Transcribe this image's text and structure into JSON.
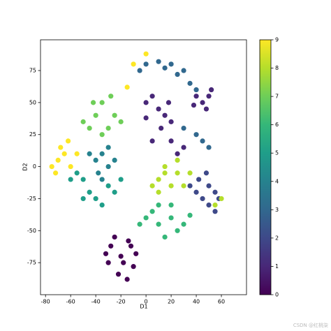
{
  "chart_data": {
    "type": "scatter",
    "xlabel": "D1",
    "ylabel": "D2",
    "xlim": [
      -84,
      80
    ],
    "ylim": [
      -100,
      99
    ],
    "xticks": [
      -80,
      -60,
      -40,
      -20,
      0,
      20,
      40,
      60
    ],
    "yticks": [
      -75,
      -50,
      -25,
      0,
      25,
      50,
      75
    ],
    "clim": [
      0,
      9
    ],
    "cticks": [
      0,
      1,
      2,
      3,
      4,
      5,
      6,
      7,
      8,
      9
    ],
    "colormap": [
      "#440154",
      "#482878",
      "#3e4989",
      "#31688e",
      "#26828e",
      "#1f9e89",
      "#35b779",
      "#6ece58",
      "#b5de2b",
      "#fde725"
    ],
    "x": [
      -20,
      -28,
      -12,
      -30,
      -10,
      -22,
      -15,
      -25,
      -8,
      -32,
      -18,
      -14,
      0,
      5,
      10,
      15,
      20,
      12,
      5,
      20,
      25,
      30,
      0,
      18,
      40,
      45,
      50,
      48,
      52,
      38,
      40,
      45,
      50,
      55,
      50,
      42,
      58,
      35,
      48,
      55,
      -5,
      0,
      10,
      20,
      30,
      35,
      25,
      15,
      40,
      40,
      45,
      50,
      30,
      -40,
      -35,
      -30,
      -38,
      -45,
      -30,
      -35,
      -25,
      -50,
      -45,
      -40,
      -55,
      -35,
      -25,
      -60,
      -30,
      -20,
      -50,
      0,
      10,
      20,
      5,
      15,
      25,
      -5,
      30,
      10,
      20,
      35,
      -40,
      -35,
      -30,
      -45,
      -25,
      -35,
      -42,
      -28,
      -50,
      -20,
      10,
      15,
      20,
      5,
      25,
      30,
      15,
      25,
      10,
      35,
      55,
      60,
      -70,
      -65,
      -75,
      -60,
      -68,
      -72,
      -62,
      -55,
      0,
      -15,
      -10
    ],
    "y": [
      -70,
      -62,
      -62,
      -75,
      -78,
      -84,
      -88,
      -55,
      -68,
      -68,
      -75,
      -58,
      50,
      55,
      45,
      40,
      35,
      30,
      20,
      20,
      10,
      15,
      38,
      50,
      55,
      50,
      55,
      45,
      60,
      48,
      -20,
      -25,
      -15,
      -20,
      -30,
      -10,
      -25,
      -15,
      -5,
      -35,
      75,
      80,
      82,
      80,
      75,
      65,
      72,
      77,
      60,
      25,
      20,
      15,
      30,
      5,
      10,
      0,
      -5,
      10,
      15,
      -10,
      5,
      -10,
      -20,
      -25,
      -5,
      -30,
      -20,
      -10,
      -15,
      -10,
      -25,
      -40,
      -45,
      -40,
      -35,
      -55,
      -50,
      -45,
      -45,
      -30,
      -30,
      -38,
      40,
      50,
      30,
      30,
      40,
      25,
      50,
      55,
      35,
      35,
      -10,
      -5,
      -15,
      -15,
      -5,
      -15,
      0,
      5,
      -20,
      -5,
      -30,
      -25,
      5,
      10,
      0,
      0,
      15,
      -5,
      20,
      10,
      88,
      62,
      80
    ],
    "c": [
      0,
      0,
      0,
      0,
      0,
      0,
      0,
      0,
      0,
      0,
      0,
      0,
      1,
      1,
      1,
      1,
      1,
      1,
      1,
      1,
      1,
      1,
      1,
      1,
      1,
      1,
      1,
      1,
      1,
      1,
      2,
      2,
      2,
      2,
      2,
      2,
      2,
      2,
      2,
      2,
      3,
      3,
      3,
      3,
      3,
      3,
      3,
      3,
      3,
      3,
      3,
      3,
      3,
      4,
      4,
      4,
      4,
      4,
      4,
      4,
      4,
      5,
      5,
      5,
      5,
      5,
      5,
      5,
      5,
      5,
      5,
      6,
      6,
      6,
      6,
      6,
      6,
      6,
      6,
      6,
      6,
      6,
      7,
      7,
      7,
      7,
      7,
      7,
      7,
      7,
      7,
      7,
      8,
      8,
      8,
      8,
      8,
      8,
      8,
      8,
      8,
      8,
      8,
      8,
      9,
      9,
      9,
      9,
      9,
      9,
      9,
      9,
      9,
      9,
      9
    ]
  },
  "watermark": "CSDN @红桃柒"
}
